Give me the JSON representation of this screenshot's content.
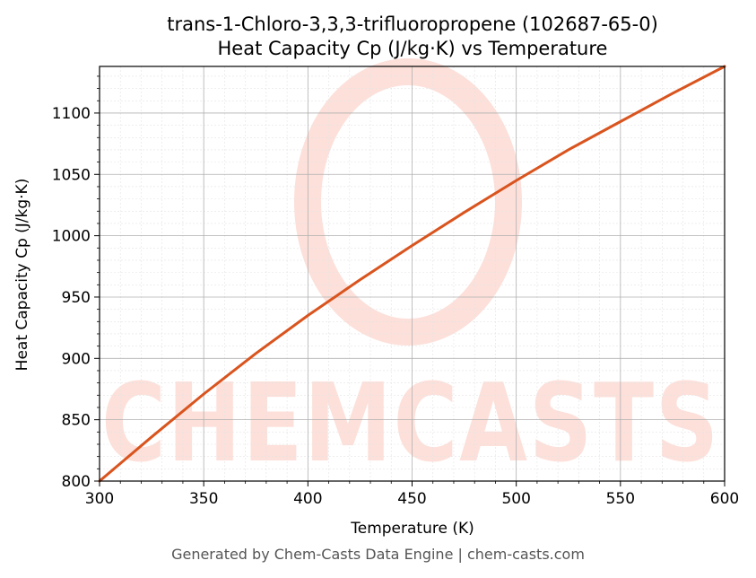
{
  "footer": "Generated by Chem-Casts Data Engine | chem-casts.com",
  "watermark": "CHEMCASTS",
  "colors": {
    "line": "#d9541e",
    "watermark": "#fde0da",
    "grid_major": "#b0b0b0",
    "grid_minor": "#e3e3e3"
  },
  "chart_data": {
    "type": "line",
    "title": "trans-1-Chloro-3,3,3-trifluoropropene (102687-65-0)",
    "subtitle": "Heat Capacity Cp (J/kg·K) vs Temperature",
    "xlabel": "Temperature (K)",
    "ylabel": "Heat Capacity Cp (J/kg·K)",
    "xlim": [
      300,
      600
    ],
    "ylim": [
      800,
      1138
    ],
    "xticks": [
      300,
      350,
      400,
      450,
      500,
      550,
      600
    ],
    "yticks": [
      800,
      850,
      900,
      950,
      1000,
      1050,
      1100
    ],
    "grid": true,
    "series": [
      {
        "x": [
          300,
          325,
          350,
          375,
          400,
          425,
          450,
          475,
          500,
          525,
          550,
          575,
          600
        ],
        "values": [
          800,
          836,
          871,
          904,
          935,
          964,
          992,
          1019,
          1045,
          1070,
          1093,
          1116,
          1138
        ]
      }
    ]
  }
}
